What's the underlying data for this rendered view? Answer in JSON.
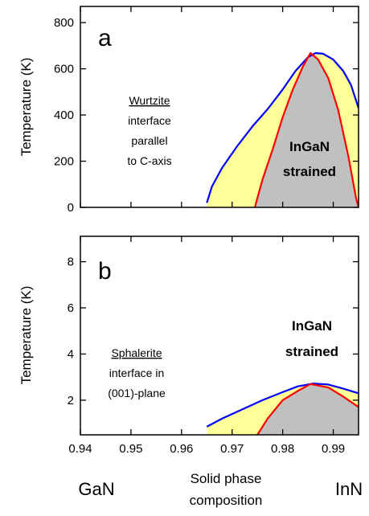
{
  "chart_data": [
    {
      "type": "area",
      "panel": "a",
      "ylabel": "Temperature (K)",
      "xlim": [
        0.94,
        0.995
      ],
      "ylim": [
        0,
        870
      ],
      "yticks": [
        0,
        200,
        400,
        600,
        800
      ],
      "notes": [
        "Wurtzite",
        "interface",
        "parallel",
        "to C-axis"
      ],
      "region_label": [
        "InGaN",
        "strained"
      ],
      "series": [
        {
          "color": "#0000ff",
          "fill": "#ffff99",
          "points": [
            [
              0.965,
              20
            ],
            [
              0.966,
              90
            ],
            [
              0.968,
              170
            ],
            [
              0.971,
              265
            ],
            [
              0.974,
              350
            ],
            [
              0.977,
              425
            ],
            [
              0.98,
              510
            ],
            [
              0.9825,
              590
            ],
            [
              0.985,
              650
            ],
            [
              0.9865,
              668
            ],
            [
              0.988,
              665
            ],
            [
              0.99,
              640
            ],
            [
              0.992,
              590
            ],
            [
              0.9935,
              530
            ],
            [
              0.995,
              430
            ]
          ]
        },
        {
          "color": "#ff0000",
          "fill": "#c0c0c0",
          "points": [
            [
              0.9745,
              0
            ],
            [
              0.976,
              120
            ],
            [
              0.978,
              250
            ],
            [
              0.98,
              390
            ],
            [
              0.982,
              510
            ],
            [
              0.984,
              610
            ],
            [
              0.9855,
              668
            ],
            [
              0.987,
              640
            ],
            [
              0.989,
              560
            ],
            [
              0.991,
              420
            ],
            [
              0.993,
              220
            ],
            [
              0.9945,
              40
            ],
            [
              0.995,
              0
            ]
          ]
        }
      ]
    },
    {
      "type": "area",
      "panel": "b",
      "ylabel": "Temperature (K)",
      "xlim": [
        0.94,
        0.995
      ],
      "ylim": [
        0.5,
        9.1
      ],
      "yticks": [
        2,
        4,
        6,
        8
      ],
      "xticks": [
        0.94,
        0.95,
        0.96,
        0.97,
        0.98,
        0.99
      ],
      "notes": [
        "Sphalerite",
        "interface in",
        "(001)-plane"
      ],
      "region_label": [
        "InGaN",
        "strained"
      ],
      "series": [
        {
          "color": "#0000ff",
          "fill": "#ffff99",
          "points": [
            [
              0.965,
              0.85
            ],
            [
              0.968,
              1.2
            ],
            [
              0.972,
              1.6
            ],
            [
              0.976,
              2.0
            ],
            [
              0.98,
              2.35
            ],
            [
              0.983,
              2.6
            ],
            [
              0.986,
              2.72
            ],
            [
              0.989,
              2.68
            ],
            [
              0.992,
              2.5
            ],
            [
              0.995,
              2.3
            ]
          ]
        },
        {
          "color": "#ff0000",
          "fill": "#c0c0c0",
          "points": [
            [
              0.975,
              0.5
            ],
            [
              0.977,
              1.2
            ],
            [
              0.98,
              2.0
            ],
            [
              0.983,
              2.4
            ],
            [
              0.9855,
              2.7
            ],
            [
              0.989,
              2.55
            ],
            [
              0.992,
              2.15
            ],
            [
              0.995,
              1.7
            ]
          ]
        }
      ]
    }
  ],
  "xaxis": {
    "title_line1": "Solid phase",
    "title_line2": "composition",
    "left_end": "GaN",
    "right_end": "InN"
  }
}
